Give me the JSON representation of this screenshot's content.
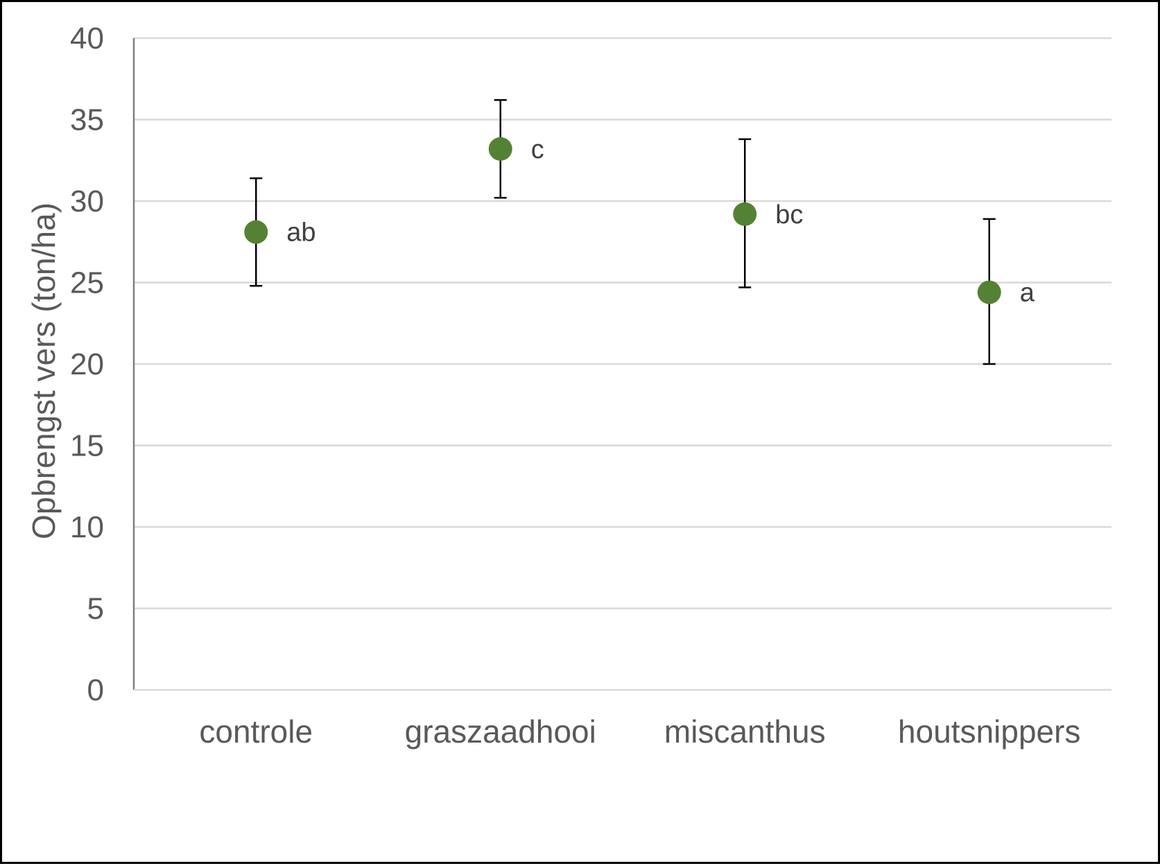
{
  "chart_data": {
    "type": "scatter",
    "categories": [
      "controle",
      "graszaadhooi",
      "miscanthus",
      "houtsnippers"
    ],
    "values": [
      28.1,
      33.2,
      29.2,
      24.4
    ],
    "error_low": [
      24.8,
      30.2,
      24.7,
      20.0
    ],
    "error_high": [
      31.4,
      36.2,
      33.8,
      28.9
    ],
    "labels": [
      "ab",
      "c",
      "bc",
      "a"
    ],
    "ylabel": "Opbrengst vers (ton/ha)",
    "ylim": [
      0,
      40
    ],
    "yticks": [
      "0",
      "5",
      "10",
      "15",
      "20",
      "25",
      "30",
      "35",
      "40"
    ],
    "grid": true,
    "colors": {
      "marker": "#548235",
      "errorbar": "#000000",
      "grid": "#d9d9d9",
      "axis": "#7f7f7f"
    }
  }
}
